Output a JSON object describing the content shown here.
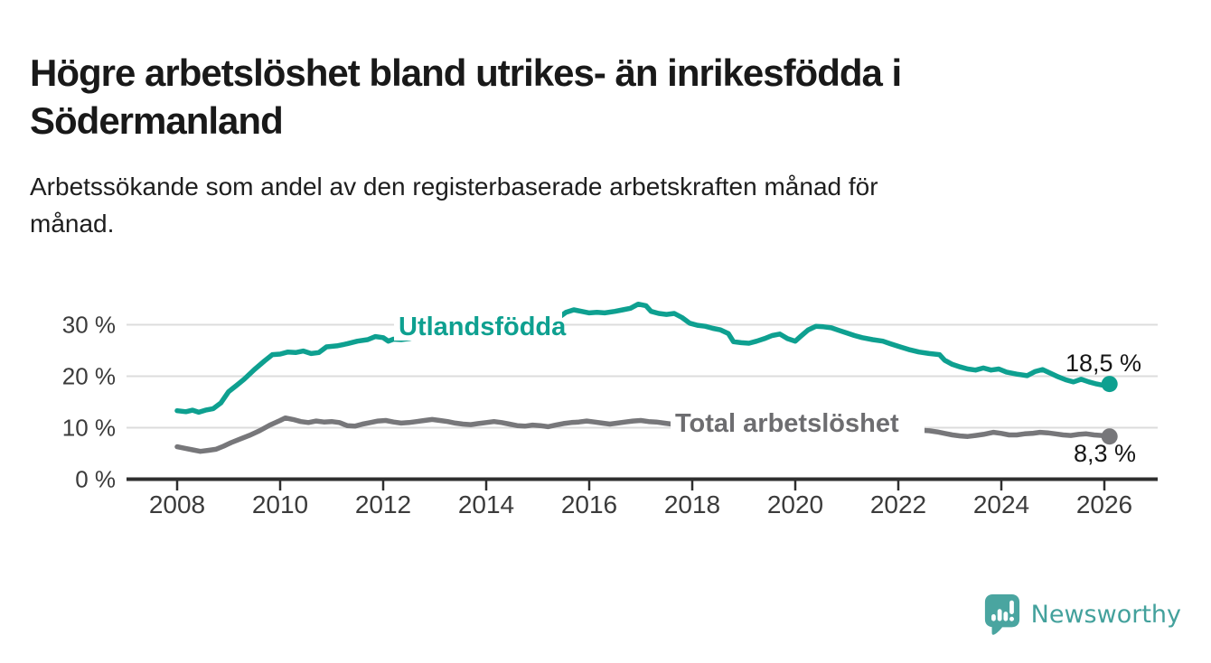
{
  "header": {
    "title_line1": "Högre arbetslöshet bland utrikes- än inrikesfödda i",
    "title_line2": "Södermanland",
    "subtitle_line1": "Arbetssökande som andel av den registerbaserade arbetskraften månad för",
    "subtitle_line2": "månad."
  },
  "footer": {
    "brand": "Newsworthy",
    "logo_icon": "newsworthy-speech-bubble-bar-chart-icon",
    "brand_color": "#43a19c",
    "logo_color": "#4aa5a0"
  },
  "chart_data": {
    "type": "line",
    "title": "Högre arbetslöshet bland utrikes- än inrikesfödda i Södermanland",
    "subtitle": "Arbetssökande som andel av den registerbaserade arbetskraften månad för månad.",
    "grid": true,
    "legend_position": "inline-labels",
    "x_axis": {
      "range": [
        2007.0,
        2027.05
      ],
      "ticks": [
        2008,
        2010,
        2012,
        2014,
        2016,
        2018,
        2020,
        2022,
        2024,
        2026
      ],
      "tick_labels": [
        "2008",
        "2010",
        "2012",
        "2014",
        "2016",
        "2018",
        "2020",
        "2022",
        "2024",
        "2026"
      ]
    },
    "y_axis": {
      "unit": "%",
      "range": [
        0,
        35.5
      ],
      "ticks": [
        0,
        10,
        20,
        30
      ],
      "tick_labels": [
        "0 %",
        "10 %",
        "20 %",
        "30 %"
      ]
    },
    "series": [
      {
        "id": "utlandsfodda",
        "name": "Utlandsfödda",
        "color": "#0ea090",
        "end_value": 18.5,
        "end_label": "18,5 %",
        "points": [
          [
            2008.0,
            13.3
          ],
          [
            2008.17,
            13.1
          ],
          [
            2008.3,
            13.4
          ],
          [
            2008.42,
            13.0
          ],
          [
            2008.55,
            13.4
          ],
          [
            2008.7,
            13.7
          ],
          [
            2008.85,
            14.8
          ],
          [
            2009.0,
            17.0
          ],
          [
            2009.15,
            18.2
          ],
          [
            2009.3,
            19.4
          ],
          [
            2009.5,
            21.3
          ],
          [
            2009.7,
            23.0
          ],
          [
            2009.85,
            24.2
          ],
          [
            2010.0,
            24.3
          ],
          [
            2010.15,
            24.7
          ],
          [
            2010.3,
            24.6
          ],
          [
            2010.45,
            24.9
          ],
          [
            2010.6,
            24.4
          ],
          [
            2010.75,
            24.6
          ],
          [
            2010.9,
            25.7
          ],
          [
            2011.1,
            25.9
          ],
          [
            2011.3,
            26.3
          ],
          [
            2011.5,
            26.8
          ],
          [
            2011.7,
            27.1
          ],
          [
            2011.85,
            27.7
          ],
          [
            2012.0,
            27.5
          ],
          [
            2012.1,
            26.8
          ],
          [
            2012.2,
            27.2
          ],
          [
            2012.35,
            27.1
          ],
          [
            2012.5,
            27.3
          ],
          [
            2012.75,
            27.9
          ],
          [
            2013.0,
            28.4
          ],
          [
            2013.25,
            28.8
          ],
          [
            2013.5,
            29.3
          ],
          [
            2013.75,
            29.7
          ],
          [
            2014.0,
            30.1
          ],
          [
            2014.25,
            30.5
          ],
          [
            2014.5,
            30.9
          ],
          [
            2014.75,
            31.1
          ],
          [
            2015.0,
            31.3
          ],
          [
            2015.25,
            31.5
          ],
          [
            2015.45,
            31.7
          ],
          [
            2015.55,
            32.4
          ],
          [
            2015.7,
            32.9
          ],
          [
            2015.85,
            32.6
          ],
          [
            2016.0,
            32.3
          ],
          [
            2016.15,
            32.4
          ],
          [
            2016.3,
            32.3
          ],
          [
            2016.5,
            32.6
          ],
          [
            2016.65,
            32.9
          ],
          [
            2016.8,
            33.2
          ],
          [
            2016.95,
            34.0
          ],
          [
            2017.1,
            33.7
          ],
          [
            2017.2,
            32.6
          ],
          [
            2017.35,
            32.2
          ],
          [
            2017.5,
            32.0
          ],
          [
            2017.65,
            32.2
          ],
          [
            2017.8,
            31.4
          ],
          [
            2017.95,
            30.3
          ],
          [
            2018.1,
            29.9
          ],
          [
            2018.25,
            29.7
          ],
          [
            2018.4,
            29.3
          ],
          [
            2018.55,
            29.0
          ],
          [
            2018.7,
            28.3
          ],
          [
            2018.8,
            26.7
          ],
          [
            2018.95,
            26.5
          ],
          [
            2019.1,
            26.4
          ],
          [
            2019.25,
            26.8
          ],
          [
            2019.4,
            27.3
          ],
          [
            2019.55,
            27.9
          ],
          [
            2019.7,
            28.2
          ],
          [
            2019.85,
            27.3
          ],
          [
            2020.0,
            26.8
          ],
          [
            2020.1,
            27.7
          ],
          [
            2020.25,
            29.0
          ],
          [
            2020.4,
            29.7
          ],
          [
            2020.55,
            29.6
          ],
          [
            2020.7,
            29.4
          ],
          [
            2020.85,
            28.9
          ],
          [
            2021.0,
            28.4
          ],
          [
            2021.15,
            27.9
          ],
          [
            2021.3,
            27.5
          ],
          [
            2021.5,
            27.1
          ],
          [
            2021.7,
            26.8
          ],
          [
            2021.85,
            26.3
          ],
          [
            2022.0,
            25.8
          ],
          [
            2022.2,
            25.2
          ],
          [
            2022.4,
            24.7
          ],
          [
            2022.6,
            24.4
          ],
          [
            2022.8,
            24.2
          ],
          [
            2022.9,
            23.1
          ],
          [
            2023.05,
            22.3
          ],
          [
            2023.2,
            21.8
          ],
          [
            2023.35,
            21.4
          ],
          [
            2023.5,
            21.2
          ],
          [
            2023.65,
            21.6
          ],
          [
            2023.8,
            21.2
          ],
          [
            2023.95,
            21.4
          ],
          [
            2024.1,
            20.8
          ],
          [
            2024.3,
            20.4
          ],
          [
            2024.5,
            20.1
          ],
          [
            2024.65,
            20.9
          ],
          [
            2024.8,
            21.3
          ],
          [
            2024.95,
            20.6
          ],
          [
            2025.1,
            19.9
          ],
          [
            2025.25,
            19.3
          ],
          [
            2025.4,
            18.9
          ],
          [
            2025.55,
            19.4
          ],
          [
            2025.7,
            18.9
          ],
          [
            2025.85,
            18.5
          ],
          [
            2026.0,
            18.2
          ],
          [
            2026.1,
            18.5
          ]
        ]
      },
      {
        "id": "total",
        "name": "Total arbetslöshet",
        "color": "#77777a",
        "end_value": 8.3,
        "end_label": "8,3 %",
        "points": [
          [
            2008.0,
            6.3
          ],
          [
            2008.15,
            6.0
          ],
          [
            2008.3,
            5.7
          ],
          [
            2008.45,
            5.4
          ],
          [
            2008.6,
            5.6
          ],
          [
            2008.75,
            5.8
          ],
          [
            2008.9,
            6.4
          ],
          [
            2009.05,
            7.1
          ],
          [
            2009.2,
            7.7
          ],
          [
            2009.4,
            8.5
          ],
          [
            2009.6,
            9.4
          ],
          [
            2009.8,
            10.5
          ],
          [
            2010.0,
            11.4
          ],
          [
            2010.1,
            11.9
          ],
          [
            2010.25,
            11.6
          ],
          [
            2010.4,
            11.2
          ],
          [
            2010.55,
            11.0
          ],
          [
            2010.7,
            11.3
          ],
          [
            2010.85,
            11.1
          ],
          [
            2011.0,
            11.2
          ],
          [
            2011.15,
            11.0
          ],
          [
            2011.3,
            10.4
          ],
          [
            2011.45,
            10.3
          ],
          [
            2011.6,
            10.7
          ],
          [
            2011.75,
            11.0
          ],
          [
            2011.9,
            11.3
          ],
          [
            2012.05,
            11.4
          ],
          [
            2012.2,
            11.1
          ],
          [
            2012.35,
            10.9
          ],
          [
            2012.5,
            11.0
          ],
          [
            2012.65,
            11.2
          ],
          [
            2012.8,
            11.4
          ],
          [
            2012.95,
            11.6
          ],
          [
            2013.1,
            11.4
          ],
          [
            2013.25,
            11.2
          ],
          [
            2013.4,
            10.9
          ],
          [
            2013.55,
            10.7
          ],
          [
            2013.7,
            10.6
          ],
          [
            2013.85,
            10.8
          ],
          [
            2014.0,
            11.0
          ],
          [
            2014.15,
            11.2
          ],
          [
            2014.3,
            11.0
          ],
          [
            2014.45,
            10.7
          ],
          [
            2014.6,
            10.4
          ],
          [
            2014.75,
            10.3
          ],
          [
            2014.9,
            10.5
          ],
          [
            2015.05,
            10.4
          ],
          [
            2015.2,
            10.2
          ],
          [
            2015.35,
            10.5
          ],
          [
            2015.5,
            10.8
          ],
          [
            2015.65,
            11.0
          ],
          [
            2015.8,
            11.1
          ],
          [
            2015.95,
            11.3
          ],
          [
            2016.1,
            11.1
          ],
          [
            2016.25,
            10.9
          ],
          [
            2016.4,
            10.7
          ],
          [
            2016.55,
            10.9
          ],
          [
            2016.7,
            11.1
          ],
          [
            2016.85,
            11.3
          ],
          [
            2017.0,
            11.4
          ],
          [
            2017.15,
            11.2
          ],
          [
            2017.3,
            11.1
          ],
          [
            2017.45,
            10.9
          ],
          [
            2017.6,
            10.7
          ],
          [
            2017.8,
            10.4
          ],
          [
            2018.0,
            10.2
          ],
          [
            2018.3,
            10.0
          ],
          [
            2018.6,
            9.8
          ],
          [
            2018.9,
            9.7
          ],
          [
            2019.2,
            9.6
          ],
          [
            2019.5,
            9.6
          ],
          [
            2019.8,
            9.8
          ],
          [
            2020.1,
            10.2
          ],
          [
            2020.35,
            10.9
          ],
          [
            2020.6,
            11.1
          ],
          [
            2020.85,
            10.8
          ],
          [
            2021.1,
            10.4
          ],
          [
            2021.4,
            10.1
          ],
          [
            2021.7,
            9.9
          ],
          [
            2022.0,
            9.8
          ],
          [
            2022.25,
            9.6
          ],
          [
            2022.45,
            9.5
          ],
          [
            2022.6,
            9.4
          ],
          [
            2022.75,
            9.2
          ],
          [
            2022.9,
            8.9
          ],
          [
            2023.05,
            8.6
          ],
          [
            2023.2,
            8.4
          ],
          [
            2023.35,
            8.3
          ],
          [
            2023.5,
            8.5
          ],
          [
            2023.65,
            8.7
          ],
          [
            2023.85,
            9.1
          ],
          [
            2024.0,
            8.9
          ],
          [
            2024.15,
            8.6
          ],
          [
            2024.3,
            8.6
          ],
          [
            2024.45,
            8.8
          ],
          [
            2024.6,
            8.9
          ],
          [
            2024.75,
            9.1
          ],
          [
            2024.9,
            9.0
          ],
          [
            2025.05,
            8.8
          ],
          [
            2025.2,
            8.6
          ],
          [
            2025.35,
            8.5
          ],
          [
            2025.5,
            8.7
          ],
          [
            2025.65,
            8.8
          ],
          [
            2025.8,
            8.6
          ],
          [
            2025.95,
            8.5
          ],
          [
            2026.1,
            8.3
          ]
        ]
      }
    ]
  }
}
